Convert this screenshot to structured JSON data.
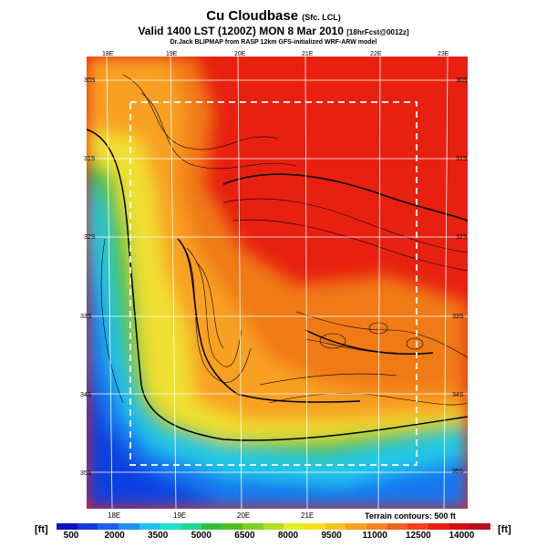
{
  "header": {
    "title": "Cu Cloudbase",
    "title_suffix": "(Sfc. LCL)",
    "valid_line": "Valid 1400 LST (1200Z) MON 8 Mar 2010",
    "valid_suffix": "[18hrFcst@0012z]",
    "subtitle": "Dr.Jack BLIPMAP from RASP 12km GFS-initialized WRF-ARW model"
  },
  "map": {
    "top_lon_labels": [
      "18E",
      "19E",
      "20E",
      "21E",
      "22E",
      "23E"
    ],
    "bottom_lon_labels": [
      "18E",
      "19E",
      "20E",
      "21E"
    ],
    "right_lat_labels": [
      "30S",
      "31S",
      "32S",
      "33S",
      "34S",
      "35S"
    ],
    "left_lat_labels": [
      "30S",
      "31S",
      "32S",
      "33S",
      "34S",
      "35S"
    ],
    "terrain_note": "Terrain contours: 500 ft",
    "colors": {
      "sea": "#1050e0",
      "coast": "#20c8e8",
      "low": "#e8e830",
      "mid": "#f0a020",
      "high": "#e82010"
    }
  },
  "colorbar": {
    "unit_left": "[ft]",
    "unit_right": "[ft]",
    "labels": [
      "500",
      "2000",
      "3500",
      "5000",
      "6500",
      "8000",
      "9500",
      "11000",
      "12500",
      "14000"
    ],
    "colors": [
      "#1010c0",
      "#1438e0",
      "#1c60f0",
      "#2090f0",
      "#20c0f0",
      "#20e0d0",
      "#20d890",
      "#30c040",
      "#50c020",
      "#80d020",
      "#b0e020",
      "#e0f020",
      "#f8e020",
      "#f8c020",
      "#f8a020",
      "#f88020",
      "#f06020",
      "#f04020",
      "#e82010",
      "#d01010",
      "#b81020"
    ]
  }
}
